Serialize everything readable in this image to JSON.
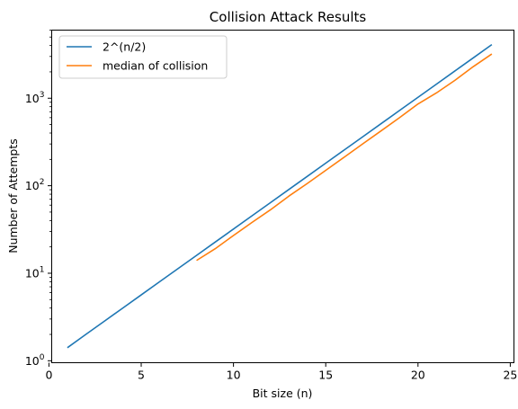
{
  "chart_data": {
    "type": "line",
    "title": "Collision Attack Results",
    "xlabel": "Bit size (n)",
    "ylabel": "Number of Attempts",
    "yscale": "log",
    "xlim": [
      0.15,
      25.2
    ],
    "ylim": [
      0.95,
      6000
    ],
    "x_ticks": [
      0,
      5,
      10,
      15,
      20,
      25
    ],
    "y_ticks": [
      {
        "value": 1,
        "base": "10",
        "exp": "0"
      },
      {
        "value": 10,
        "base": "10",
        "exp": "1"
      },
      {
        "value": 100,
        "base": "10",
        "exp": "2"
      },
      {
        "value": 1000,
        "base": "10",
        "exp": "3"
      }
    ],
    "grid": false,
    "legend_position": "upper-left",
    "series": [
      {
        "name": "2^(n/2)",
        "color": "#1f77b4",
        "x": [
          1,
          2,
          3,
          4,
          5,
          6,
          7,
          8,
          9,
          10,
          11,
          12,
          13,
          14,
          15,
          16,
          17,
          18,
          19,
          20,
          21,
          22,
          23,
          24
        ],
        "y": [
          1.41,
          2,
          2.83,
          4,
          5.66,
          8,
          11.31,
          16,
          22.63,
          32,
          45.25,
          64,
          90.51,
          128,
          181.02,
          256,
          362.04,
          512,
          724.08,
          1024,
          1448.15,
          2048,
          2896.31,
          4096
        ]
      },
      {
        "name": "median of collision",
        "color": "#ff7f0e",
        "x": [
          8,
          9,
          10,
          11,
          12,
          13,
          14,
          15,
          16,
          17,
          18,
          19,
          20,
          21,
          22,
          23,
          24
        ],
        "y": [
          14,
          19,
          27,
          38,
          53,
          76,
          106,
          150,
          212,
          300,
          424,
          600,
          860,
          1150,
          1600,
          2300,
          3200
        ]
      }
    ]
  }
}
